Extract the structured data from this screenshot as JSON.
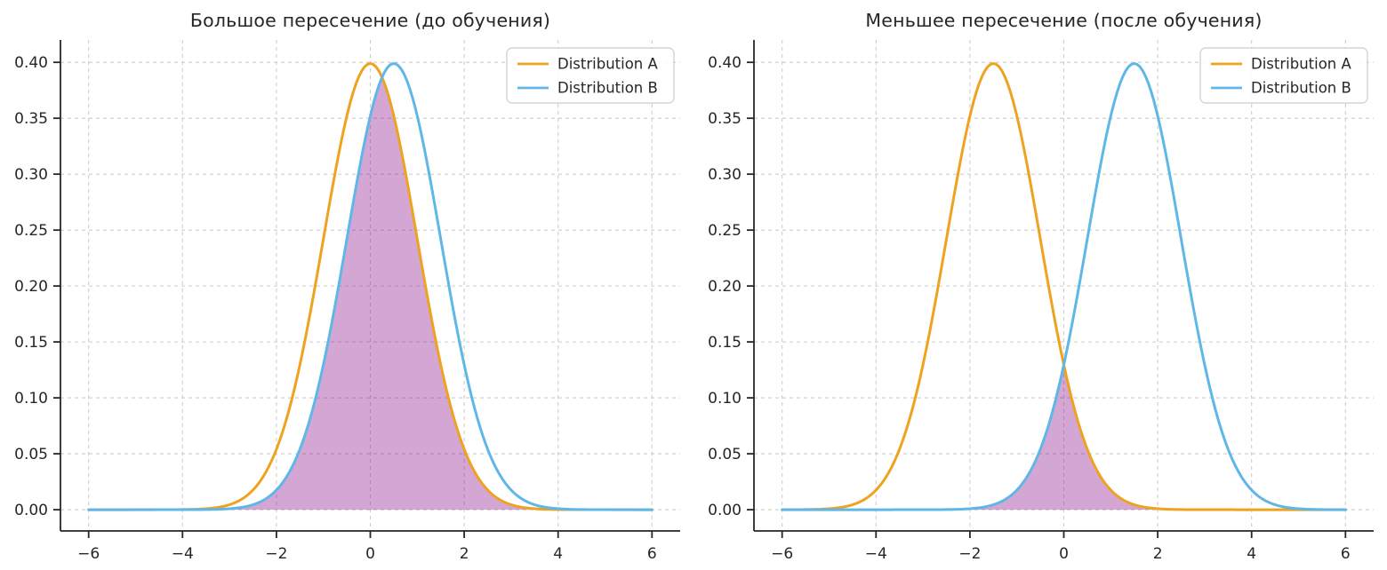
{
  "figure": {
    "background": "#ffffff",
    "panels": 2
  },
  "palette": {
    "series_a": "#EEA320",
    "series_b": "#5FB7E8",
    "overlap_fill": "rgba(128,0,128,0.35)",
    "grid": "#cccccc",
    "spine": "#262626",
    "text": "#262626",
    "legend_border": "#cccccc",
    "legend_background": "rgba(255,255,255,0.85)"
  },
  "chart_data": [
    {
      "type": "line",
      "title": "Большое пересечение (до обучения)",
      "series": [
        {
          "name": "Distribution A",
          "distribution": "normal",
          "mean": 0.0,
          "sigma": 1.0,
          "peak_y": 0.399,
          "color_key": "series_a"
        },
        {
          "name": "Distribution B",
          "distribution": "normal",
          "mean": 0.5,
          "sigma": 1.0,
          "peak_y": 0.399,
          "color_key": "series_b"
        }
      ],
      "overlap": {
        "rule": "fill_min_of_series",
        "color_key": "overlap_fill"
      },
      "x_data_range": [
        -6,
        6
      ],
      "xlim": [
        -6.6,
        6.6
      ],
      "ylim": [
        -0.019,
        0.42
      ],
      "xticks": [
        -6,
        -4,
        -2,
        0,
        2,
        4,
        6
      ],
      "xtick_labels": [
        "−6",
        "−4",
        "−2",
        "0",
        "2",
        "4",
        "6"
      ],
      "yticks": [
        0.0,
        0.05,
        0.1,
        0.15,
        0.2,
        0.25,
        0.3,
        0.35,
        0.4
      ],
      "ytick_labels": [
        "0.00",
        "0.05",
        "0.10",
        "0.15",
        "0.20",
        "0.25",
        "0.30",
        "0.35",
        "0.40"
      ],
      "grid": true,
      "legend": {
        "position": "upper right",
        "entries": [
          "Distribution A",
          "Distribution B"
        ]
      }
    },
    {
      "type": "line",
      "title": "Меньшее пересечение (после обучения)",
      "series": [
        {
          "name": "Distribution A",
          "distribution": "normal",
          "mean": -1.5,
          "sigma": 1.0,
          "peak_y": 0.399,
          "color_key": "series_a"
        },
        {
          "name": "Distribution B",
          "distribution": "normal",
          "mean": 1.5,
          "sigma": 1.0,
          "peak_y": 0.399,
          "color_key": "series_b"
        }
      ],
      "overlap": {
        "rule": "fill_min_of_series",
        "color_key": "overlap_fill",
        "crossing_x": 0,
        "crossing_y": 0.13
      },
      "x_data_range": [
        -6,
        6
      ],
      "xlim": [
        -6.6,
        6.6
      ],
      "ylim": [
        -0.019,
        0.42
      ],
      "xticks": [
        -6,
        -4,
        -2,
        0,
        2,
        4,
        6
      ],
      "xtick_labels": [
        "−6",
        "−4",
        "−2",
        "0",
        "2",
        "4",
        "6"
      ],
      "yticks": [
        0.0,
        0.05,
        0.1,
        0.15,
        0.2,
        0.25,
        0.3,
        0.35,
        0.4
      ],
      "ytick_labels": [
        "0.00",
        "0.05",
        "0.10",
        "0.15",
        "0.20",
        "0.25",
        "0.30",
        "0.35",
        "0.40"
      ],
      "grid": true,
      "legend": {
        "position": "upper right",
        "entries": [
          "Distribution A",
          "Distribution B"
        ]
      }
    }
  ]
}
